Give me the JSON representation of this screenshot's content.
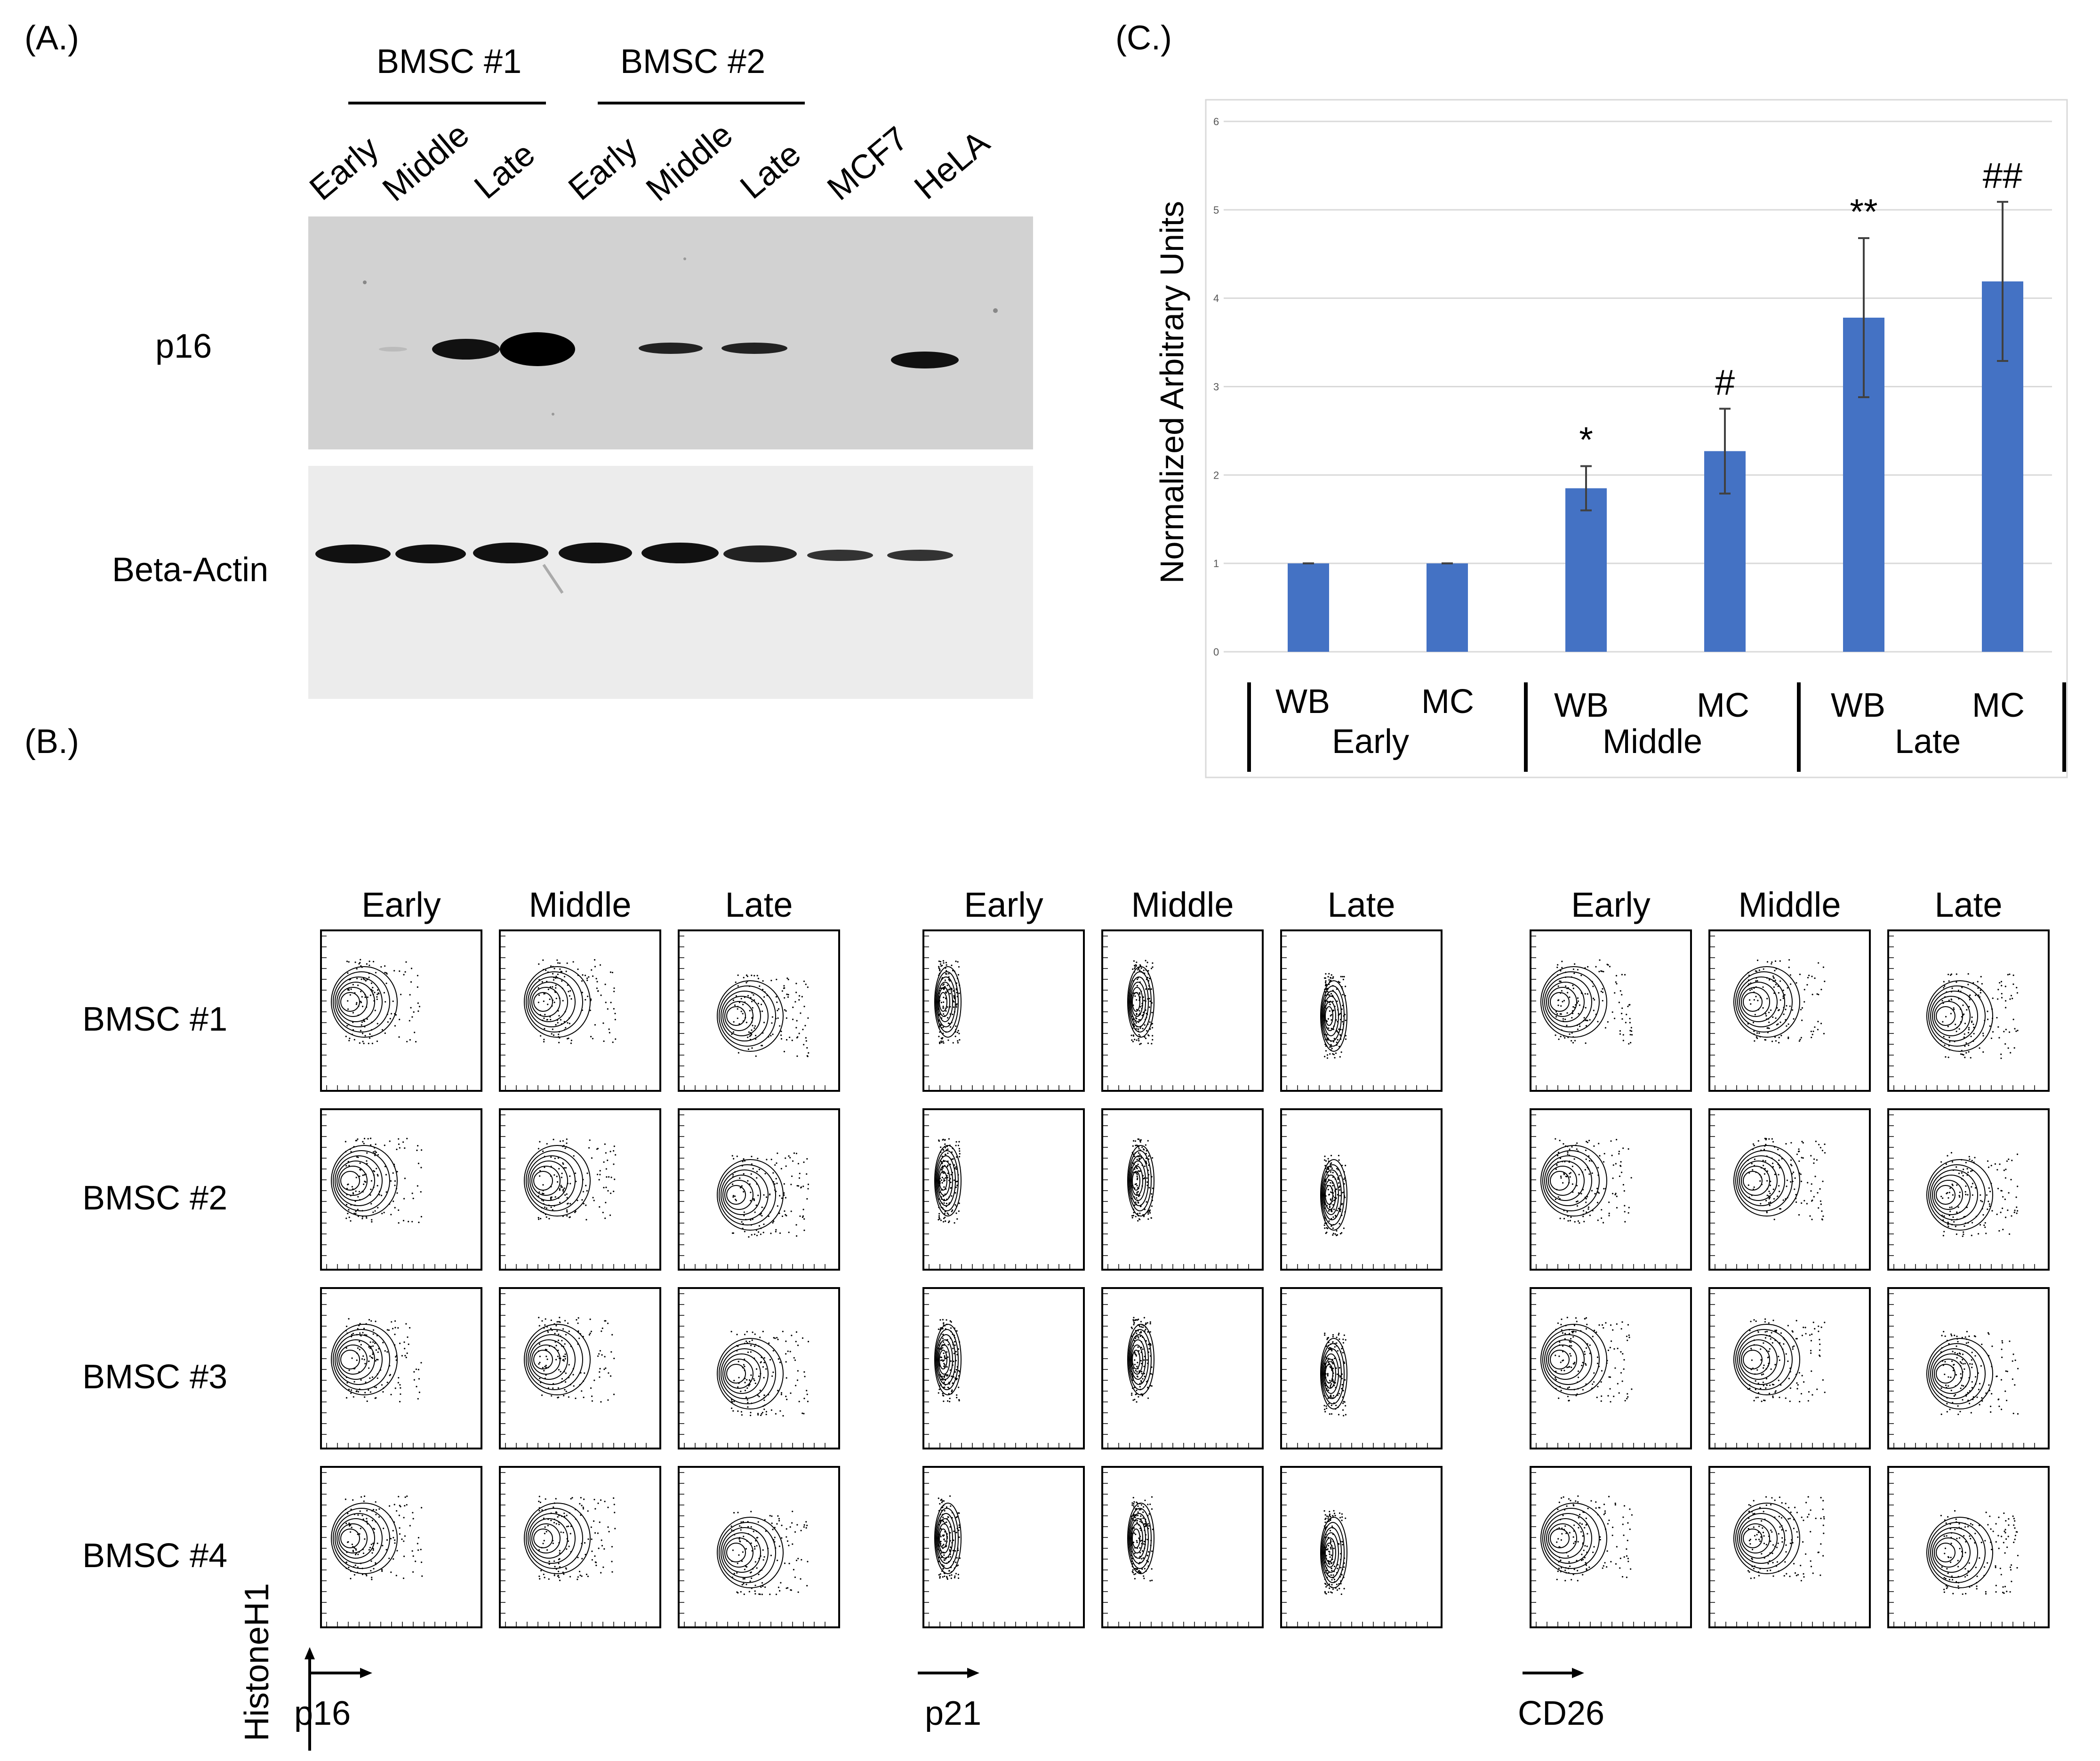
{
  "panelA": {
    "label": "(A.)",
    "groups": [
      "BMSC #1",
      "BMSC #2"
    ],
    "lanes": [
      "Early",
      "Middle",
      "Late",
      "Early",
      "Middle",
      "Late",
      "MCF7",
      "HeLA"
    ],
    "rows": [
      "p16",
      "Beta-Actin"
    ]
  },
  "panelB": {
    "label": "(B.)",
    "columns": [
      "Early",
      "Middle",
      "Late"
    ],
    "rows": [
      "BMSC #1",
      "BMSC #2",
      "BMSC #3",
      "BMSC #4"
    ],
    "y_axis": "HistoneH1",
    "markers": [
      "p16",
      "p21",
      "CD26"
    ]
  },
  "panelC": {
    "label": "(C.)",
    "chart_data": {
      "type": "bar",
      "ylabel": "Normalized Arbitrary Units",
      "ylim": [
        0,
        6
      ],
      "yticks": [
        "0",
        "1",
        "2",
        "3",
        "4",
        "5",
        "6"
      ],
      "categories": [
        "WB",
        "MC",
        "WB",
        "MC",
        "WB",
        "MC"
      ],
      "groups": [
        "Early",
        "Middle",
        "Late"
      ],
      "values": [
        1.0,
        1.0,
        1.85,
        2.27,
        3.78,
        4.19
      ],
      "errors": [
        0.0,
        0.0,
        0.25,
        0.48,
        0.9,
        0.9
      ],
      "annotations": [
        "",
        "",
        "*",
        "#",
        "**",
        "##"
      ]
    }
  }
}
